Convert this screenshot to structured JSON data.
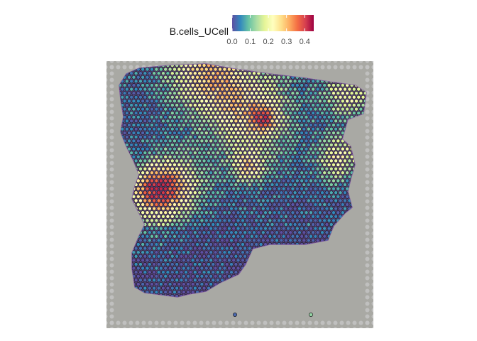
{
  "chart_data": {
    "type": "scatter",
    "subtype": "spatial-transcriptomics-spot-plot",
    "title": "",
    "xlabel": "",
    "ylabel": "",
    "grid": false,
    "background_image": "H&E tissue section",
    "legend": {
      "title": "B.cells_UCell",
      "position": "top",
      "type": "continuous-colorbar",
      "palette": [
        "#5E4FA2",
        "#3288BD",
        "#66C2A5",
        "#ABDDA4",
        "#E6F598",
        "#FFFFBF",
        "#FEE08B",
        "#FDAE61",
        "#F46D43",
        "#D53E4F",
        "#9E0142"
      ],
      "range": [
        0,
        0.45
      ],
      "ticks": [
        0.0,
        0.1,
        0.2,
        0.3,
        0.4
      ],
      "tick_labels": [
        "0.0",
        "0.1",
        "0.2",
        "0.3",
        "0.4"
      ]
    },
    "value_summary": {
      "min": 0.0,
      "max": 0.42,
      "high_regions": [
        "top edge of tissue",
        "left-middle band",
        "central vertical band",
        "right edge"
      ],
      "low_regions": [
        "bottom lobe",
        "right-middle"
      ]
    }
  }
}
